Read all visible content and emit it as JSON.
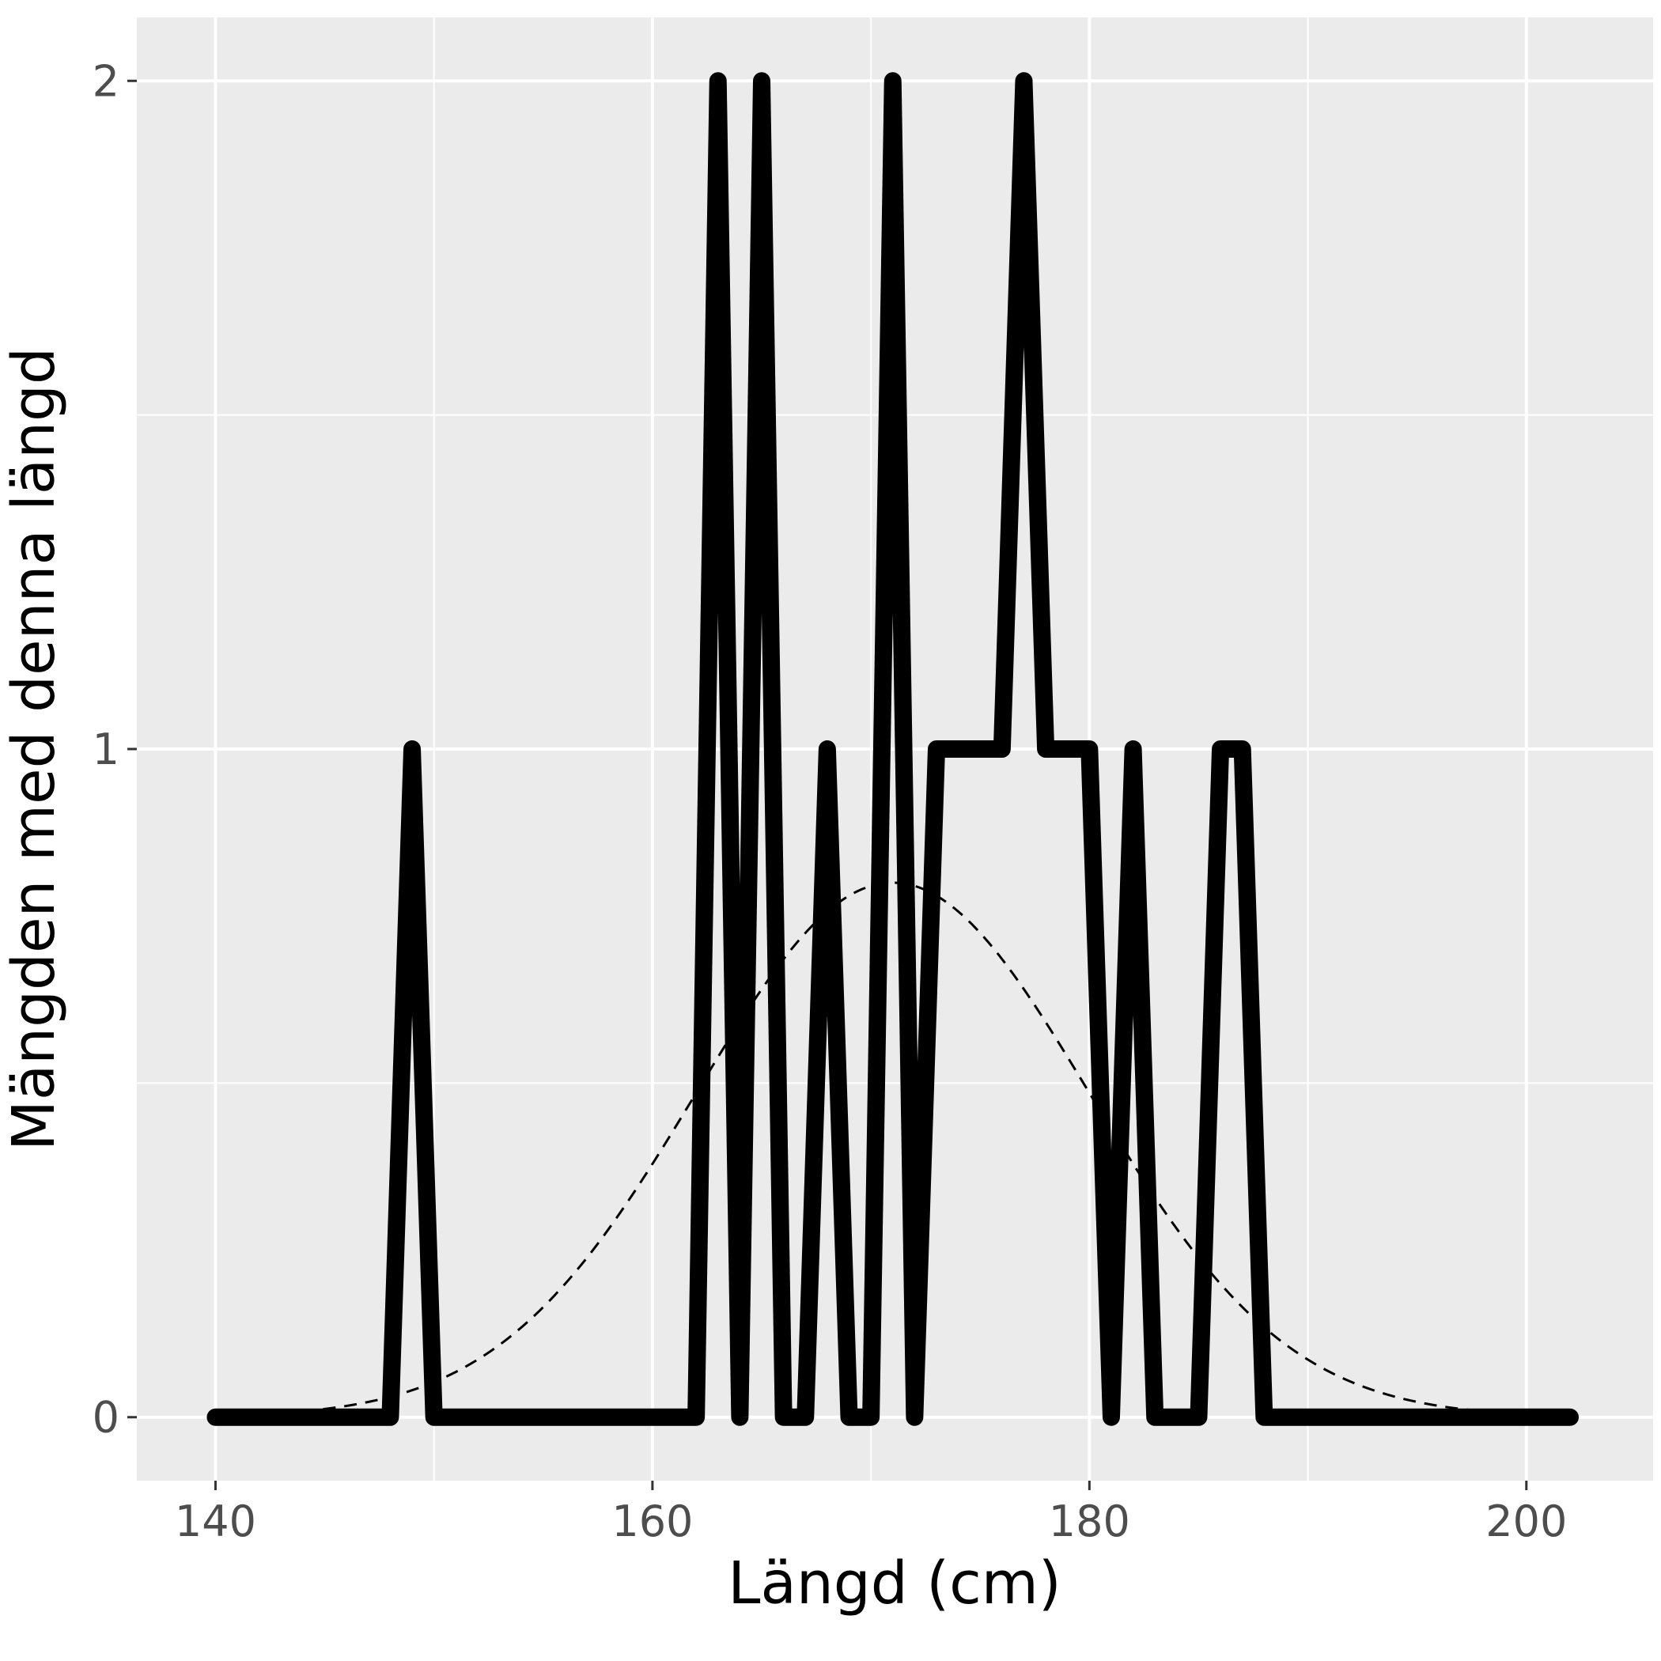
{
  "chart_data": {
    "type": "line",
    "title": "",
    "xlabel": "Längd (cm)",
    "ylabel": "Mängden med denna längd",
    "xlim": [
      136.4,
      205.8
    ],
    "ylim": [
      -0.095,
      2.095
    ],
    "x_ticks": [
      140,
      160,
      180,
      200
    ],
    "x_tick_labels": [
      "140",
      "160",
      "180",
      "200"
    ],
    "y_ticks": [
      0,
      1,
      2
    ],
    "y_tick_labels": [
      "0",
      "1",
      "2"
    ],
    "x_minor_gridlines": [
      150,
      170,
      190
    ],
    "y_minor_gridlines": [
      0.5,
      1.5
    ],
    "grid": true,
    "background_color": "#ebebeb",
    "gridline_color": "#ffffff",
    "series": [
      {
        "style": "solid-thick",
        "color": "#000000",
        "x": [
          140,
          148,
          149,
          150,
          162,
          163,
          164,
          165,
          166,
          167,
          168,
          169,
          170,
          171,
          172,
          173,
          174,
          175,
          176,
          177,
          178,
          179,
          180,
          181,
          182,
          183,
          184,
          185,
          186,
          187,
          188,
          202
        ],
        "y": [
          0,
          0,
          1,
          0,
          0,
          2,
          0,
          2,
          0,
          0,
          1,
          0,
          0,
          2,
          0,
          1,
          1,
          1,
          1,
          2,
          1,
          1,
          1,
          0,
          1,
          0,
          0,
          0,
          1,
          1,
          0,
          0
        ]
      },
      {
        "style": "dashed",
        "color": "#000000",
        "curve": "normal",
        "mean": 171,
        "sd": 9,
        "scale": 0.8,
        "x_range": [
          142,
          200
        ]
      }
    ]
  }
}
